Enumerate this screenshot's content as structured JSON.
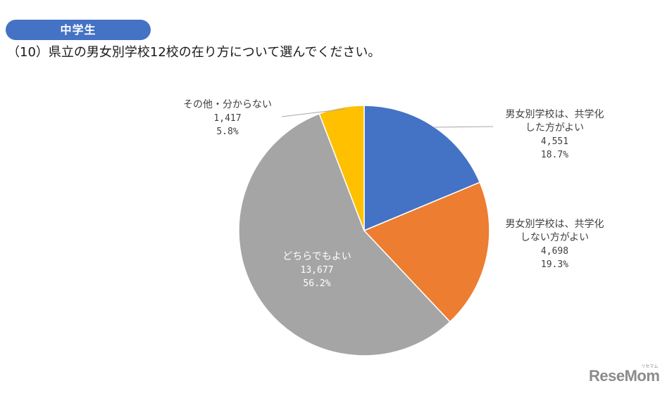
{
  "header": {
    "badge": "中学生",
    "question": "（10）県立の男女別学校12校の在り方について選んでください。"
  },
  "labels": {
    "coed": {
      "line1": "男女別学校は、共学化",
      "line2": "した方がよい",
      "count": "4,551",
      "pct": "18.7%"
    },
    "keep": {
      "line1": "男女別学校は、共学化",
      "line2": "しない方がよい",
      "count": "4,698",
      "pct": "19.3%"
    },
    "either": {
      "line1": "どちらでもよい",
      "count": "13,677",
      "pct": "56.2%"
    },
    "other": {
      "line1": "その他・分からない",
      "count": "1,417",
      "pct": "5.8%"
    }
  },
  "colors": {
    "coed": "#4472c4",
    "keep": "#ed7d31",
    "either": "#a5a5a5",
    "other": "#ffc000",
    "badge": "#4472c4"
  },
  "logo": {
    "text": "ReseMom",
    "sub": "リセマム"
  },
  "chart_data": {
    "type": "pie",
    "title": "（10）県立の男女別学校12校の在り方について選んでください。",
    "subtitle": "中学生",
    "categories": [
      "男女別学校は、共学化した方がよい",
      "男女別学校は、共学化しない方がよい",
      "どちらでもよい",
      "その他・分からない"
    ],
    "values": [
      4551,
      4698,
      13677,
      1417
    ],
    "percentages": [
      18.7,
      19.3,
      56.2,
      5.8
    ],
    "colors": [
      "#4472c4",
      "#ed7d31",
      "#a5a5a5",
      "#ffc000"
    ],
    "start_angle_deg": 0,
    "direction": "clockwise",
    "legend": "none (data labels with leader lines)"
  }
}
